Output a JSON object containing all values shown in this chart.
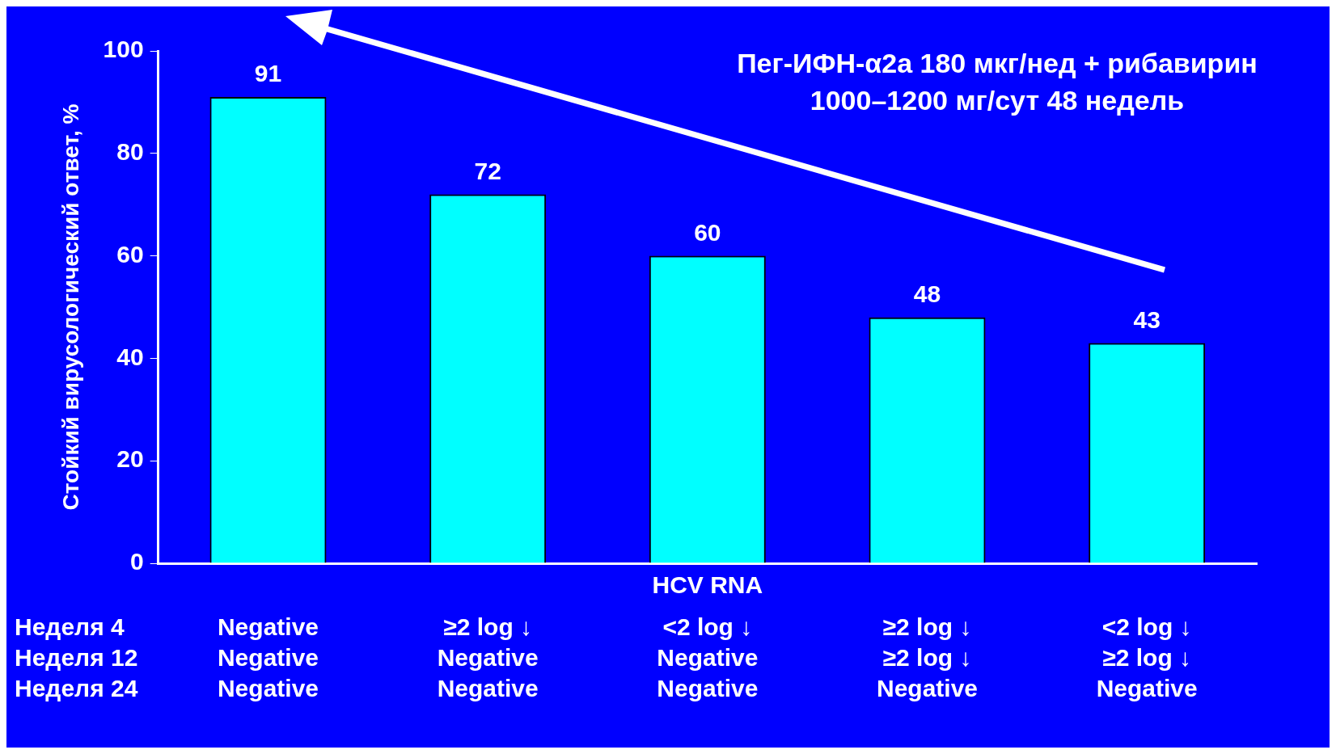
{
  "chart_data": {
    "type": "bar",
    "ylabel": "Стойкий вирусологический ответ, %",
    "xlabel": "HCV RNA",
    "categories": [
      "Negative\nNegative\nNegative",
      "≥2 log ↓\nNegative\nNegative",
      "<2 log ↓\nNegative\nNegative",
      "≥2 log ↓\n≥2 log ↓\nNegative",
      "<2 log ↓\n≥2 log ↓\nNegative"
    ],
    "values": [
      91,
      72,
      60,
      48,
      43
    ],
    "color": "#00ffff",
    "ylim": [
      0,
      100
    ],
    "yticks": [
      0,
      20,
      40,
      60,
      80,
      100
    ],
    "grid": false,
    "legend": false,
    "data_labels": true,
    "annotations": [
      "Неделя 4",
      "Неделя 12",
      "Неделя 24",
      "Пег-ИФН-α2a 180 мкг/нед + рибавирин\n1000–1200 мг/сут 48 недель"
    ]
  }
}
